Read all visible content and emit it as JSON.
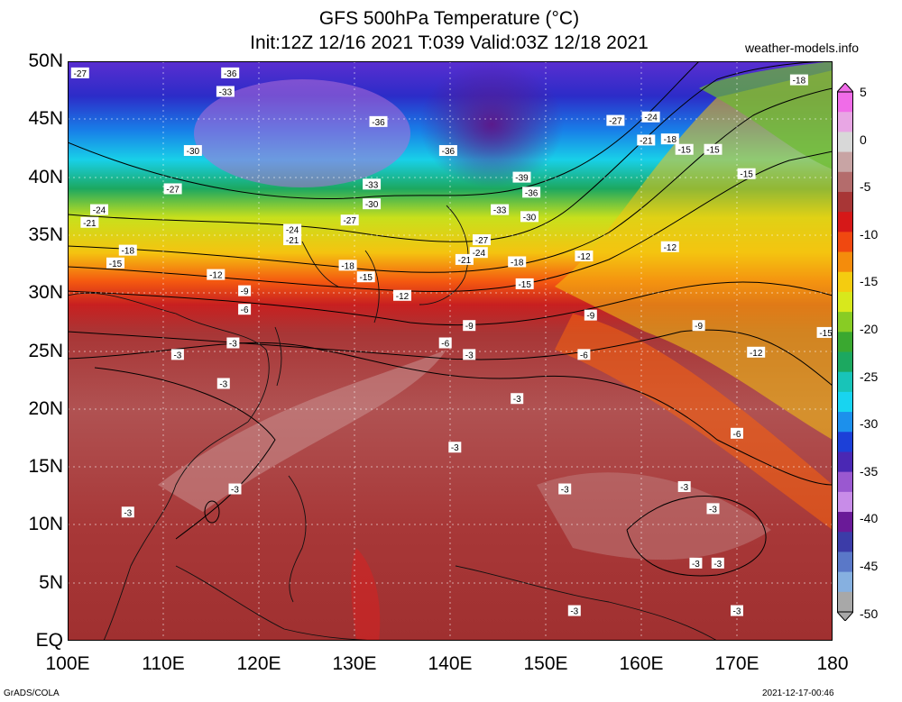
{
  "title_line1": "GFS 500hPa Temperature (°C)",
  "title_line2": "Init:12Z 12/16 2021 T:039 Valid:03Z 12/18 2021",
  "credit": "weather-models.info",
  "footer_left": "GrADS/COLA",
  "footer_right": "2021-12-17-00:46",
  "lat_labels": [
    "50N",
    "45N",
    "40N",
    "35N",
    "30N",
    "25N",
    "20N",
    "15N",
    "10N",
    "5N",
    "EQ"
  ],
  "lon_labels": [
    "100E",
    "110E",
    "120E",
    "130E",
    "140E",
    "150E",
    "160E",
    "170E",
    "180"
  ],
  "colorbar_labels": [
    "5",
    "0",
    "-5",
    "-10",
    "-15",
    "-20",
    "-25",
    "-30",
    "-35",
    "-40",
    "-45",
    "-50"
  ],
  "colorbar_colors": [
    "#f06ce8",
    "#e8a6e4",
    "#d8d8d8",
    "#c8a4a4",
    "#b46c6c",
    "#a83636",
    "#d61818",
    "#f04810",
    "#f48c0c",
    "#f4cc10",
    "#d8e81c",
    "#88cc24",
    "#3aa830",
    "#1ca860",
    "#18c4b8",
    "#18d4f0",
    "#1c90ec",
    "#1c40d8",
    "#4a28b4",
    "#9a58d0",
    "#c88ce8",
    "#6a1a98",
    "#3c3ca8",
    "#5a78c8",
    "#86b0e0",
    "#a8a8a8"
  ],
  "legend_note": "",
  "contour_labels": [
    {
      "v": "-27",
      "lon": 101.3,
      "lat": 49.0
    },
    {
      "v": "-36",
      "lon": 117.0,
      "lat": 49.0
    },
    {
      "v": "-33",
      "lon": 116.5,
      "lat": 47.4
    },
    {
      "v": "-36",
      "lon": 132.5,
      "lat": 44.8
    },
    {
      "v": "-30",
      "lon": 113.1,
      "lat": 42.3
    },
    {
      "v": "-36",
      "lon": 139.8,
      "lat": 42.3
    },
    {
      "v": "-27",
      "lon": 111.0,
      "lat": 39.0
    },
    {
      "v": "-33",
      "lon": 131.8,
      "lat": 39.4
    },
    {
      "v": "-39",
      "lon": 147.5,
      "lat": 40.0
    },
    {
      "v": "-36",
      "lon": 148.5,
      "lat": 38.7
    },
    {
      "v": "-30",
      "lon": 131.8,
      "lat": 37.7
    },
    {
      "v": "-33",
      "lon": 145.2,
      "lat": 37.2
    },
    {
      "v": "-30",
      "lon": 148.3,
      "lat": 36.6
    },
    {
      "v": "-27",
      "lon": 129.5,
      "lat": 36.3
    },
    {
      "v": "-24",
      "lon": 103.3,
      "lat": 37.2
    },
    {
      "v": "-21",
      "lon": 102.3,
      "lat": 36.1
    },
    {
      "v": "-24",
      "lon": 123.5,
      "lat": 35.5
    },
    {
      "v": "-21",
      "lon": 123.5,
      "lat": 34.6
    },
    {
      "v": "-27",
      "lon": 143.3,
      "lat": 34.6
    },
    {
      "v": "-24",
      "lon": 143.0,
      "lat": 33.5
    },
    {
      "v": "-21",
      "lon": 141.5,
      "lat": 32.9
    },
    {
      "v": "-18",
      "lon": 106.3,
      "lat": 33.7
    },
    {
      "v": "-15",
      "lon": 105.0,
      "lat": 32.6
    },
    {
      "v": "-18",
      "lon": 129.3,
      "lat": 32.4
    },
    {
      "v": "-18",
      "lon": 147.0,
      "lat": 32.7
    },
    {
      "v": "-15",
      "lon": 131.2,
      "lat": 31.4
    },
    {
      "v": "-12",
      "lon": 115.5,
      "lat": 31.6
    },
    {
      "v": "-15",
      "lon": 147.8,
      "lat": 30.8
    },
    {
      "v": "-12",
      "lon": 154.0,
      "lat": 33.2
    },
    {
      "v": "-9",
      "lon": 118.5,
      "lat": 30.2
    },
    {
      "v": "-12",
      "lon": 135.0,
      "lat": 29.8
    },
    {
      "v": "-6",
      "lon": 118.5,
      "lat": 28.6
    },
    {
      "v": "-9",
      "lon": 154.7,
      "lat": 28.1
    },
    {
      "v": "-9",
      "lon": 142.0,
      "lat": 27.2
    },
    {
      "v": "-9",
      "lon": 166.0,
      "lat": 27.2
    },
    {
      "v": "-6",
      "lon": 139.5,
      "lat": 25.7
    },
    {
      "v": "-3",
      "lon": 117.3,
      "lat": 25.7
    },
    {
      "v": "-3",
      "lon": 142.0,
      "lat": 24.7
    },
    {
      "v": "-6",
      "lon": 154.0,
      "lat": 24.7
    },
    {
      "v": "-3",
      "lon": 111.5,
      "lat": 24.7
    },
    {
      "v": "-12",
      "lon": 172.0,
      "lat": 24.9
    },
    {
      "v": "-15",
      "lon": 179.3,
      "lat": 26.6
    },
    {
      "v": "-3",
      "lon": 116.3,
      "lat": 22.2
    },
    {
      "v": "-3",
      "lon": 147.0,
      "lat": 20.9
    },
    {
      "v": "-6",
      "lon": 170.0,
      "lat": 17.9
    },
    {
      "v": "-3",
      "lon": 140.5,
      "lat": 16.7
    },
    {
      "v": "-3",
      "lon": 117.5,
      "lat": 13.1
    },
    {
      "v": "-3",
      "lon": 152.0,
      "lat": 13.1
    },
    {
      "v": "-3",
      "lon": 164.5,
      "lat": 13.3
    },
    {
      "v": "-3",
      "lon": 167.5,
      "lat": 11.4
    },
    {
      "v": "-3",
      "lon": 106.3,
      "lat": 11.1
    },
    {
      "v": "-3",
      "lon": 168.0,
      "lat": 6.7
    },
    {
      "v": "-3",
      "lon": 165.7,
      "lat": 6.7
    },
    {
      "v": "-3",
      "lon": 153.0,
      "lat": 2.6
    },
    {
      "v": "-3",
      "lon": 170.0,
      "lat": 2.6
    },
    {
      "v": "-18",
      "lon": 176.5,
      "lat": 48.4
    },
    {
      "v": "-24",
      "lon": 161.0,
      "lat": 45.2
    },
    {
      "v": "-27",
      "lon": 157.3,
      "lat": 44.9
    },
    {
      "v": "-21",
      "lon": 160.5,
      "lat": 43.2
    },
    {
      "v": "-18",
      "lon": 163.0,
      "lat": 43.3
    },
    {
      "v": "-15",
      "lon": 164.5,
      "lat": 42.4
    },
    {
      "v": "-15",
      "lon": 167.5,
      "lat": 42.4
    },
    {
      "v": "-15",
      "lon": 171.0,
      "lat": 40.3
    },
    {
      "v": "-12",
      "lon": 163.0,
      "lat": 34.0
    }
  ]
}
